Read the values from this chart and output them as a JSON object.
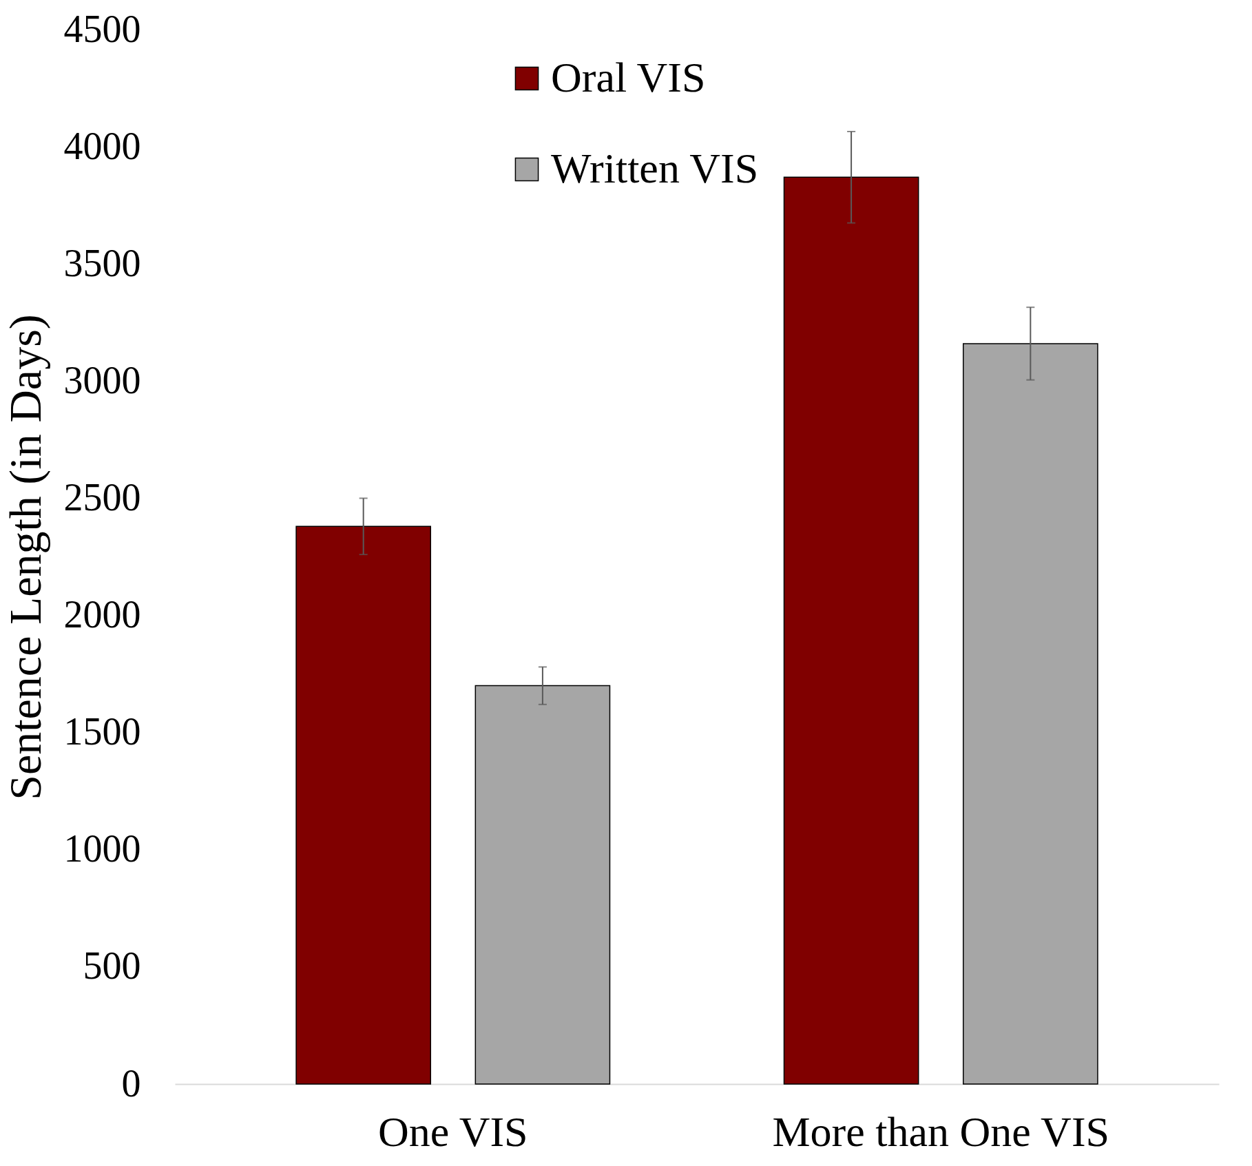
{
  "chart_data": {
    "type": "bar",
    "ylabel": "Sentence Length (in Days)",
    "categories": [
      "One VIS",
      "More than One VIS"
    ],
    "series": [
      {
        "name": "Oral VIS",
        "color": "#800000",
        "values": [
          2380,
          3870
        ],
        "errors": [
          120,
          195
        ]
      },
      {
        "name": "Written VIS",
        "color": "#a6a6a6",
        "values": [
          1700,
          3160
        ],
        "errors": [
          80,
          155
        ]
      }
    ],
    "ylim": [
      0,
      4500
    ],
    "yticks": [
      0,
      500,
      1000,
      1500,
      2000,
      2500,
      3000,
      3500,
      4000,
      4500
    ],
    "grid": false,
    "legend": "top"
  }
}
